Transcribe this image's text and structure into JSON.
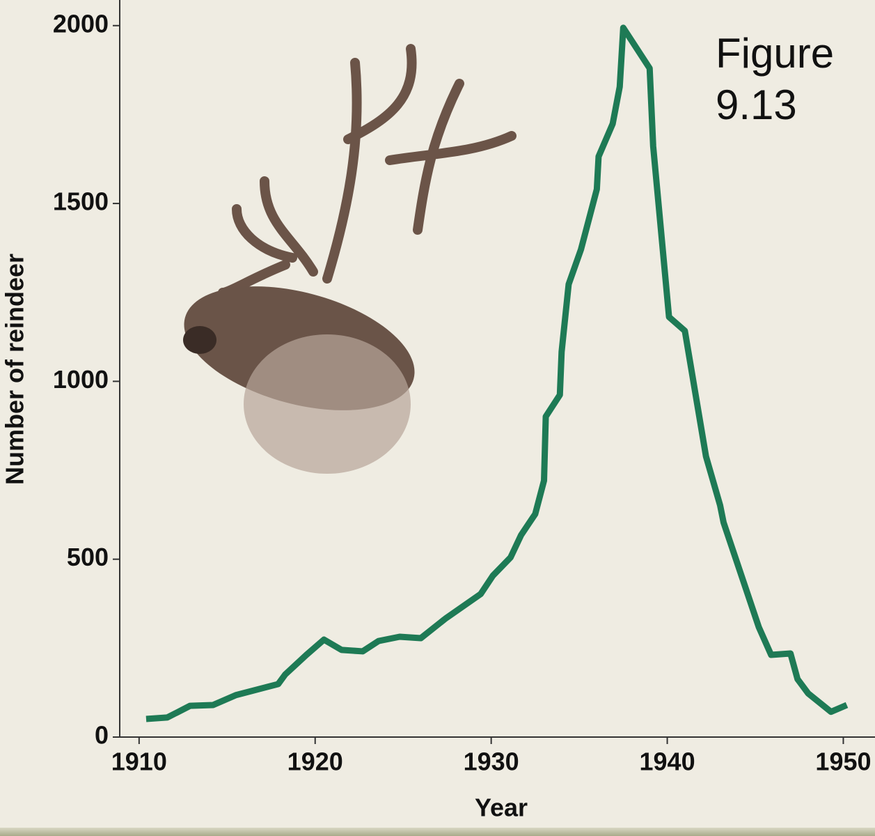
{
  "chart_data": {
    "type": "line",
    "annotation": "Figure 9.13",
    "xlabel": "Year",
    "ylabel": "Number of reindeer",
    "x": [
      1910.4,
      1911.6,
      1912.9,
      1914.2,
      1915.5,
      1917.9,
      1918.3,
      1919.5,
      1920.5,
      1921.5,
      1922.7,
      1923.6,
      1924.8,
      1926.0,
      1927.4,
      1929.4,
      1930.1,
      1931.1,
      1931.7,
      1932.5,
      1933.0,
      1933.1,
      1933.9,
      1934.0,
      1934.4,
      1935.1,
      1936.0,
      1936.1,
      1936.9,
      1937.3,
      1937.5,
      1939.0,
      1939.2,
      1940.1,
      1941.0,
      1942.2,
      1943.0,
      1943.2,
      1945.2,
      1945.9,
      1947.0,
      1947.4,
      1948.0,
      1949.3,
      1950.2
    ],
    "series": [
      {
        "color": "#1e7a55",
        "values": [
          51,
          55,
          88,
          90,
          118,
          149,
          176,
          231,
          274,
          245,
          241,
          270,
          282,
          278,
          333,
          402,
          454,
          505,
          568,
          627,
          721,
          901,
          962,
          1083,
          1273,
          1371,
          1540,
          1632,
          1724,
          1828,
          1994,
          1880,
          1661,
          1181,
          1142,
          789,
          652,
          603,
          309,
          231,
          235,
          163,
          123,
          71,
          90
        ]
      }
    ],
    "xlim": [
      1908.9,
      1951.8
    ],
    "xticks": [
      1910,
      1920,
      1930,
      1940,
      1950
    ],
    "ylim": [
      0,
      2072
    ],
    "yticks": [
      0,
      500,
      1000,
      1500,
      2000
    ]
  }
}
